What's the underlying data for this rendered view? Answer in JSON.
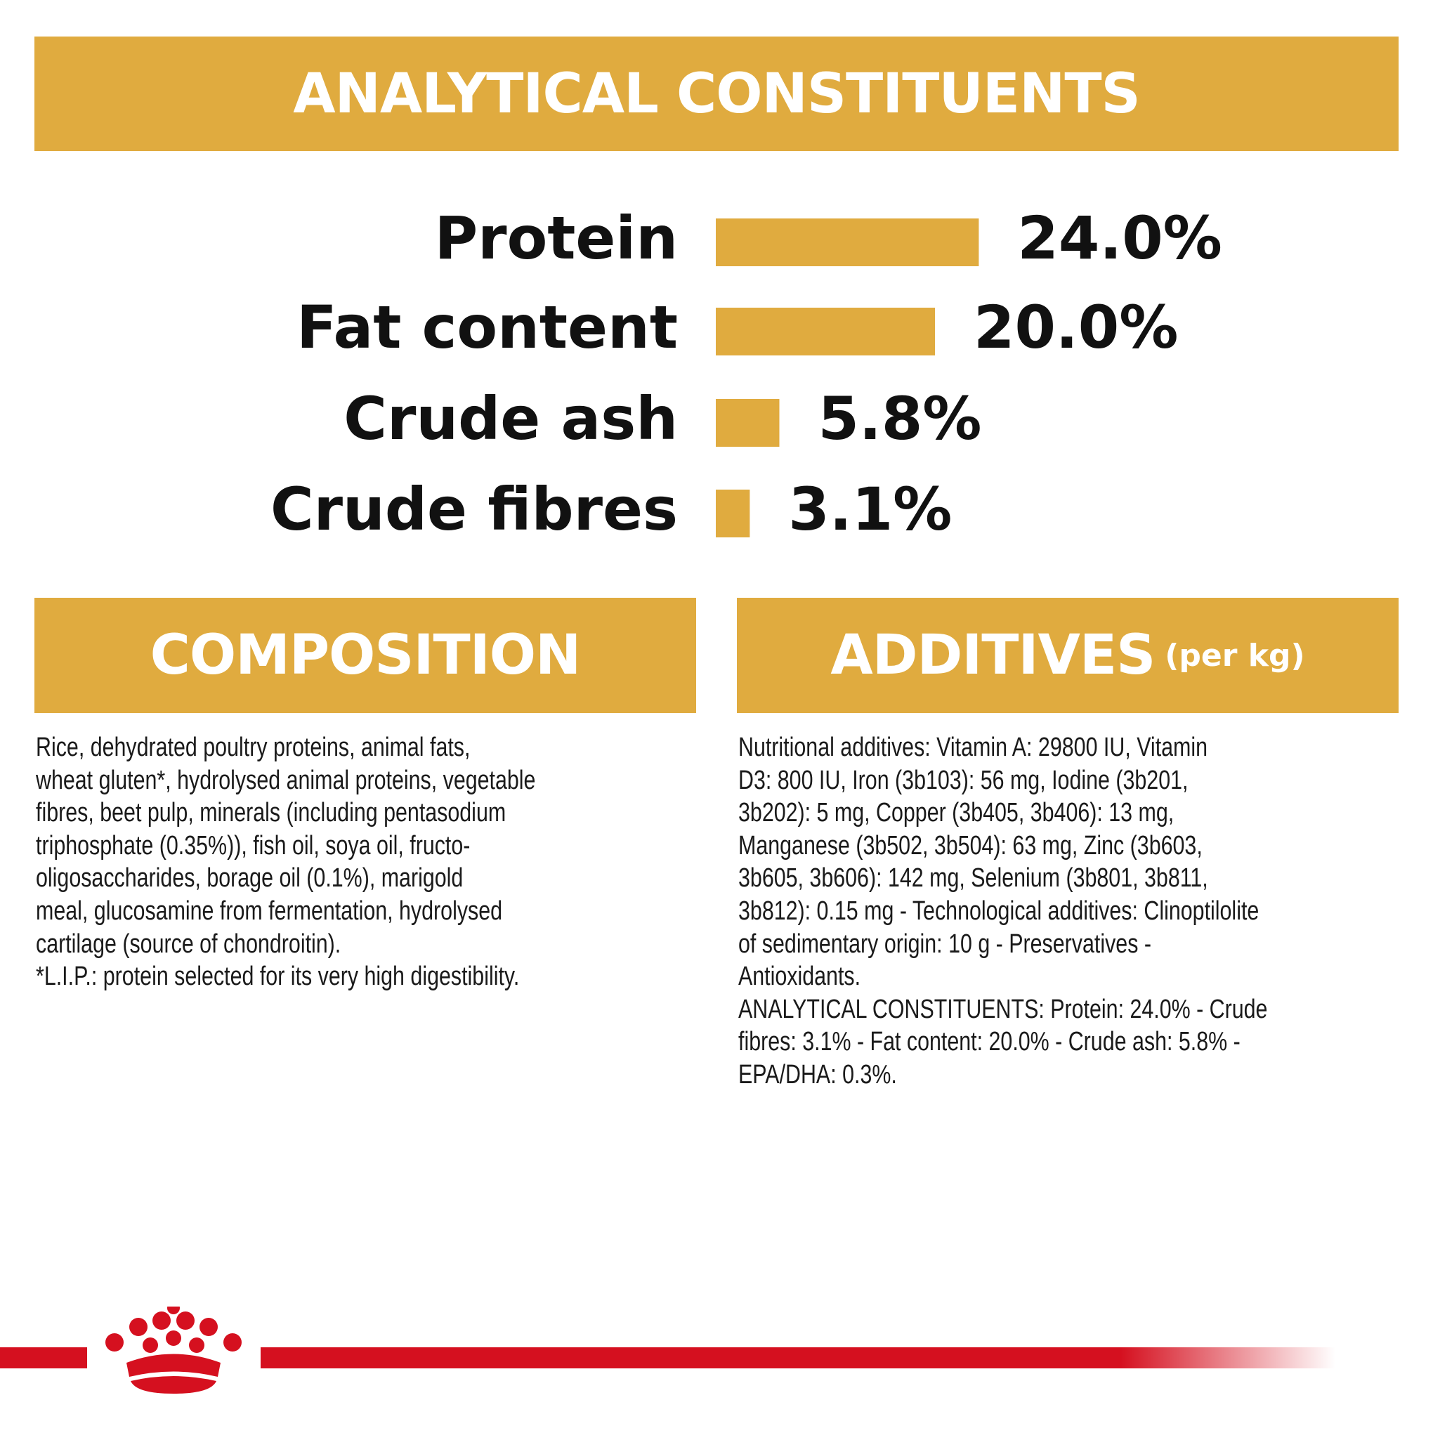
{
  "chart_data": {
    "type": "bar",
    "orientation": "horizontal",
    "title": "ANALYTICAL CONSTITUENTS",
    "categories": [
      "Protein",
      "Fat content",
      "Crude ash",
      "Crude fibres"
    ],
    "values": [
      24.0,
      20.0,
      5.8,
      3.1
    ],
    "value_labels": [
      "24.0%",
      "20.0%",
      "5.8%",
      "3.1%"
    ],
    "color": "#e0ab3f"
  },
  "composition": {
    "title": "COMPOSITION",
    "lines": [
      "Rice, dehydrated poultry proteins, animal fats,",
      "wheat gluten*, hydrolysed animal proteins, vegetable",
      "fibres, beet pulp, minerals (including pentasodium",
      "triphosphate (0.35%)), fish oil, soya oil, fructo-",
      "oligosaccharides, borage oil (0.1%), marigold",
      "meal, glucosamine from fermentation, hydrolysed",
      "cartilage (source of chondroitin).",
      "*L.I.P.: protein selected for its very high digestibility."
    ]
  },
  "additives": {
    "title": "ADDITIVES",
    "title_note": "(per kg)",
    "lines": [
      "Nutritional additives: Vitamin A: 29800 IU, Vitamin",
      "D3: 800 IU, Iron (3b103): 56 mg, Iodine (3b201,",
      "3b202): 5 mg, Copper (3b405, 3b406): 13 mg,",
      "Manganese (3b502, 3b504): 63 mg, Zinc (3b603,",
      "3b605, 3b606): 142 mg, Selenium (3b801, 3b811,",
      "3b812): 0.15 mg - Technological additives: Clinoptilolite",
      "of sedimentary origin: 10 g - Preservatives -",
      "Antioxidants.",
      "ANALYTICAL CONSTITUENTS: Protein: 24.0% - Crude",
      "fibres: 3.1% - Fat content: 20.0% - Crude ash: 5.8% -",
      "EPA/DHA: 0.3%."
    ]
  }
}
